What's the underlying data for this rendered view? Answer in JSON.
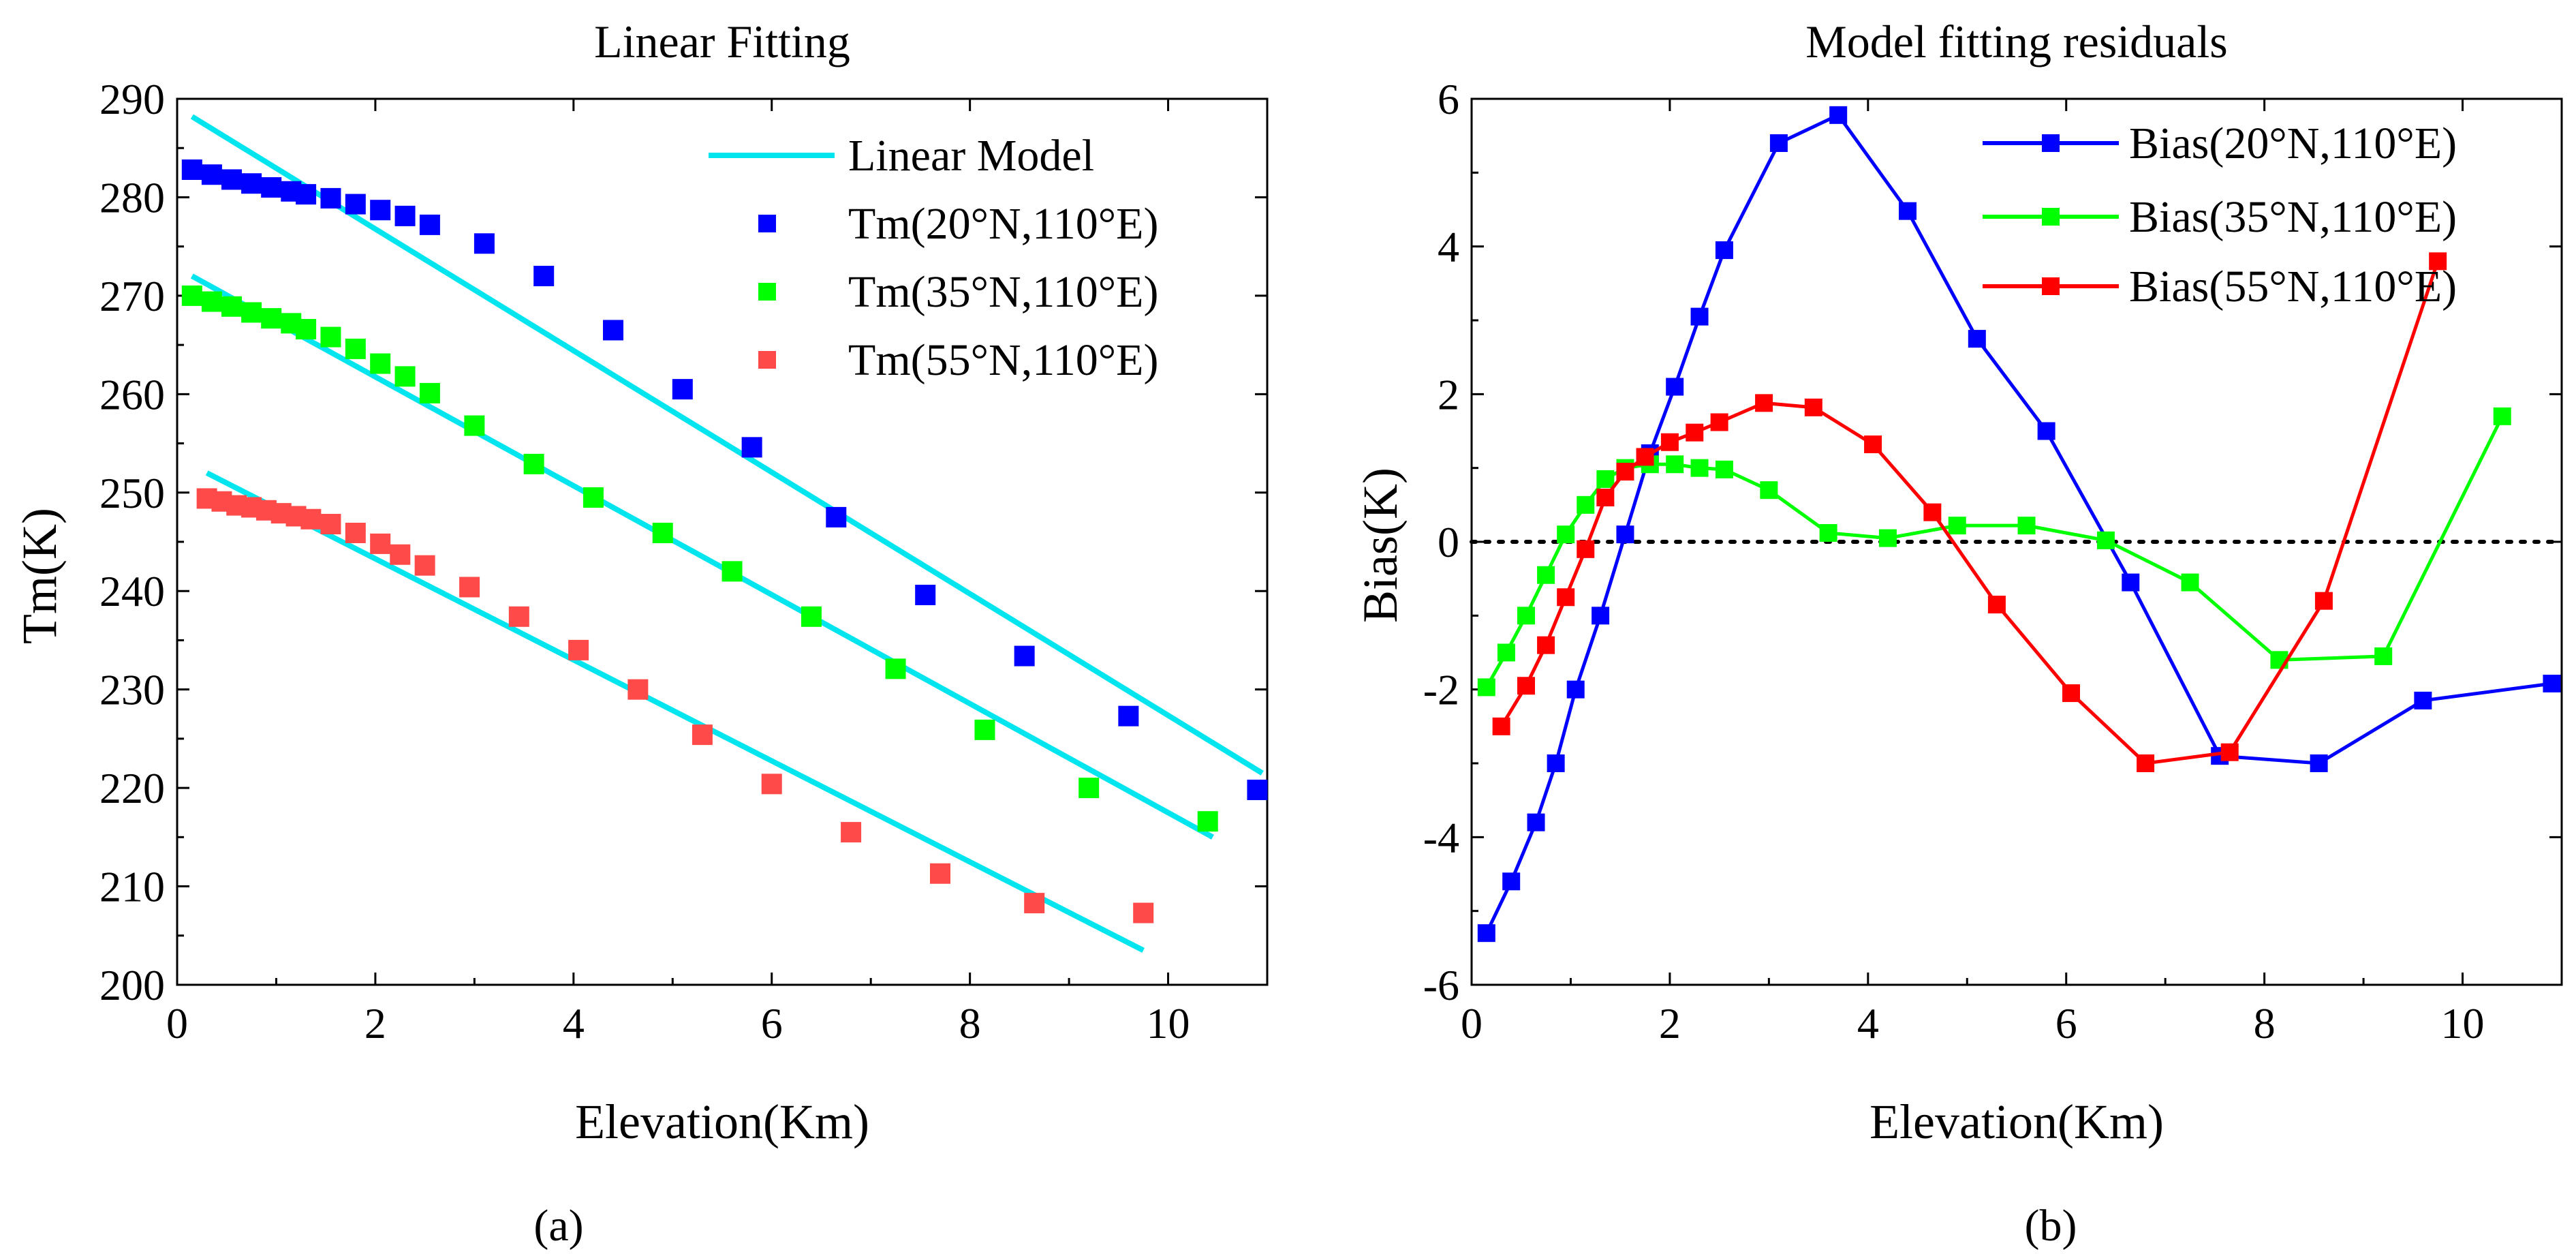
{
  "panels": [
    {
      "key": "a",
      "caption": "(a)",
      "chart_data": {
        "type": "scatter",
        "title": "Linear Fitting",
        "xlabel": "Elevation(Km)",
        "ylabel": "Tm(K)",
        "xlim": [
          0,
          11
        ],
        "ylim": [
          200,
          290
        ],
        "xticks": [
          0,
          2,
          4,
          6,
          8,
          10
        ],
        "yticks": [
          200,
          210,
          220,
          230,
          240,
          250,
          260,
          270,
          280,
          290
        ],
        "legend_position": "top-right",
        "series": [
          {
            "name": "Linear Model",
            "kind": "line",
            "color": "#00E5EE",
            "segments": [
              {
                "x": [
                  0.15,
                  10.95
                ],
                "y": [
                  288.2,
                  221.5
                ]
              },
              {
                "x": [
                  0.15,
                  10.45
                ],
                "y": [
                  272.0,
                  215.0
                ]
              },
              {
                "x": [
                  0.3,
                  9.75
                ],
                "y": [
                  252.0,
                  203.5
                ]
              }
            ]
          },
          {
            "name": "Tm(20°N,110°E)",
            "kind": "marker",
            "color": "#0000FF",
            "x": [
              0.15,
              0.35,
              0.55,
              0.75,
              0.95,
              1.15,
              1.3,
              1.55,
              1.8,
              2.05,
              2.3,
              2.55,
              3.1,
              3.7,
              4.4,
              5.1,
              5.8,
              6.65,
              7.55,
              8.55,
              9.6,
              10.9
            ],
            "y": [
              282.8,
              282.3,
              281.8,
              281.4,
              281.0,
              280.6,
              280.3,
              279.9,
              279.3,
              278.7,
              278.1,
              277.2,
              275.3,
              272.0,
              266.5,
              260.5,
              254.6,
              247.5,
              239.6,
              233.4,
              227.3,
              219.8
            ]
          },
          {
            "name": "Tm(35°N,110°E)",
            "kind": "marker",
            "color": "#00FF00",
            "x": [
              0.15,
              0.35,
              0.55,
              0.75,
              0.95,
              1.15,
              1.3,
              1.55,
              1.8,
              2.05,
              2.3,
              2.55,
              3.0,
              3.6,
              4.2,
              4.9,
              5.6,
              6.4,
              7.25,
              8.15,
              9.2,
              10.4
            ],
            "y": [
              270.0,
              269.4,
              268.9,
              268.3,
              267.7,
              267.2,
              266.6,
              265.8,
              264.6,
              263.1,
              261.8,
              260.1,
              256.8,
              252.9,
              249.5,
              245.9,
              242.0,
              237.4,
              232.1,
              225.9,
              220.0,
              216.6
            ]
          },
          {
            "name": "Tm(55°N,110°E)",
            "kind": "marker",
            "color": "#FF4A4A",
            "x": [
              0.3,
              0.45,
              0.6,
              0.75,
              0.9,
              1.05,
              1.2,
              1.35,
              1.55,
              1.8,
              2.05,
              2.25,
              2.5,
              2.95,
              3.45,
              4.05,
              4.65,
              5.3,
              6.0,
              6.8,
              7.7,
              8.65,
              9.75
            ],
            "y": [
              249.4,
              249.1,
              248.7,
              248.5,
              248.2,
              247.9,
              247.6,
              247.3,
              246.8,
              245.9,
              244.8,
              243.7,
              242.6,
              240.4,
              237.4,
              234.0,
              230.0,
              225.4,
              220.4,
              215.5,
              211.3,
              208.3,
              207.3
            ]
          }
        ]
      }
    },
    {
      "key": "b",
      "caption": "(b)",
      "chart_data": {
        "type": "line",
        "title": "Model fitting residuals",
        "xlabel": "Elevation(Km)",
        "ylabel": "Bias(K)",
        "xlim": [
          0,
          11
        ],
        "ylim": [
          -6,
          6
        ],
        "xticks": [
          0,
          2,
          4,
          6,
          8,
          10
        ],
        "yticks": [
          -6,
          -4,
          -2,
          0,
          2,
          4,
          6
        ],
        "zero_line": "dotted",
        "legend_position": "top-right",
        "series": [
          {
            "name": "Bias(20°N,110°E)",
            "color": "#0000FF",
            "x": [
              0.15,
              0.4,
              0.65,
              0.85,
              1.05,
              1.3,
              1.55,
              1.8,
              2.05,
              2.3,
              2.55,
              3.1,
              3.7,
              4.4,
              5.1,
              5.8,
              6.65,
              7.55,
              8.55,
              9.6,
              10.9
            ],
            "y": [
              -5.3,
              -4.6,
              -3.8,
              -3.0,
              -2.0,
              -1.0,
              0.1,
              1.2,
              2.1,
              3.05,
              3.95,
              5.4,
              5.78,
              4.48,
              2.75,
              1.5,
              -0.55,
              -2.9,
              -3.0,
              -2.15,
              -1.92
            ]
          },
          {
            "name": "Bias(35°N,110°E)",
            "color": "#00FF00",
            "x": [
              0.15,
              0.35,
              0.55,
              0.75,
              0.95,
              1.15,
              1.35,
              1.55,
              1.8,
              2.05,
              2.3,
              2.55,
              3.0,
              3.6,
              4.2,
              4.9,
              5.6,
              6.4,
              7.25,
              8.15,
              9.2,
              10.4
            ],
            "y": [
              -1.97,
              -1.5,
              -1.0,
              -0.45,
              0.1,
              0.5,
              0.85,
              1.0,
              1.05,
              1.05,
              1.0,
              0.98,
              0.7,
              0.12,
              0.05,
              0.22,
              0.22,
              0.02,
              -0.55,
              -1.6,
              -1.55,
              1.7
            ]
          },
          {
            "name": "Bias(55°N,110°E)",
            "color": "#FF0000",
            "x": [
              0.3,
              0.55,
              0.75,
              0.95,
              1.15,
              1.35,
              1.55,
              1.75,
              2.0,
              2.25,
              2.5,
              2.95,
              3.45,
              4.05,
              4.65,
              5.3,
              6.05,
              6.8,
              7.65,
              8.6,
              9.75
            ],
            "y": [
              -2.5,
              -1.95,
              -1.4,
              -0.75,
              -0.1,
              0.6,
              0.95,
              1.15,
              1.35,
              1.48,
              1.62,
              1.88,
              1.82,
              1.32,
              0.4,
              -0.85,
              -2.05,
              -3.0,
              -2.85,
              -0.8,
              3.8
            ]
          }
        ]
      }
    }
  ]
}
